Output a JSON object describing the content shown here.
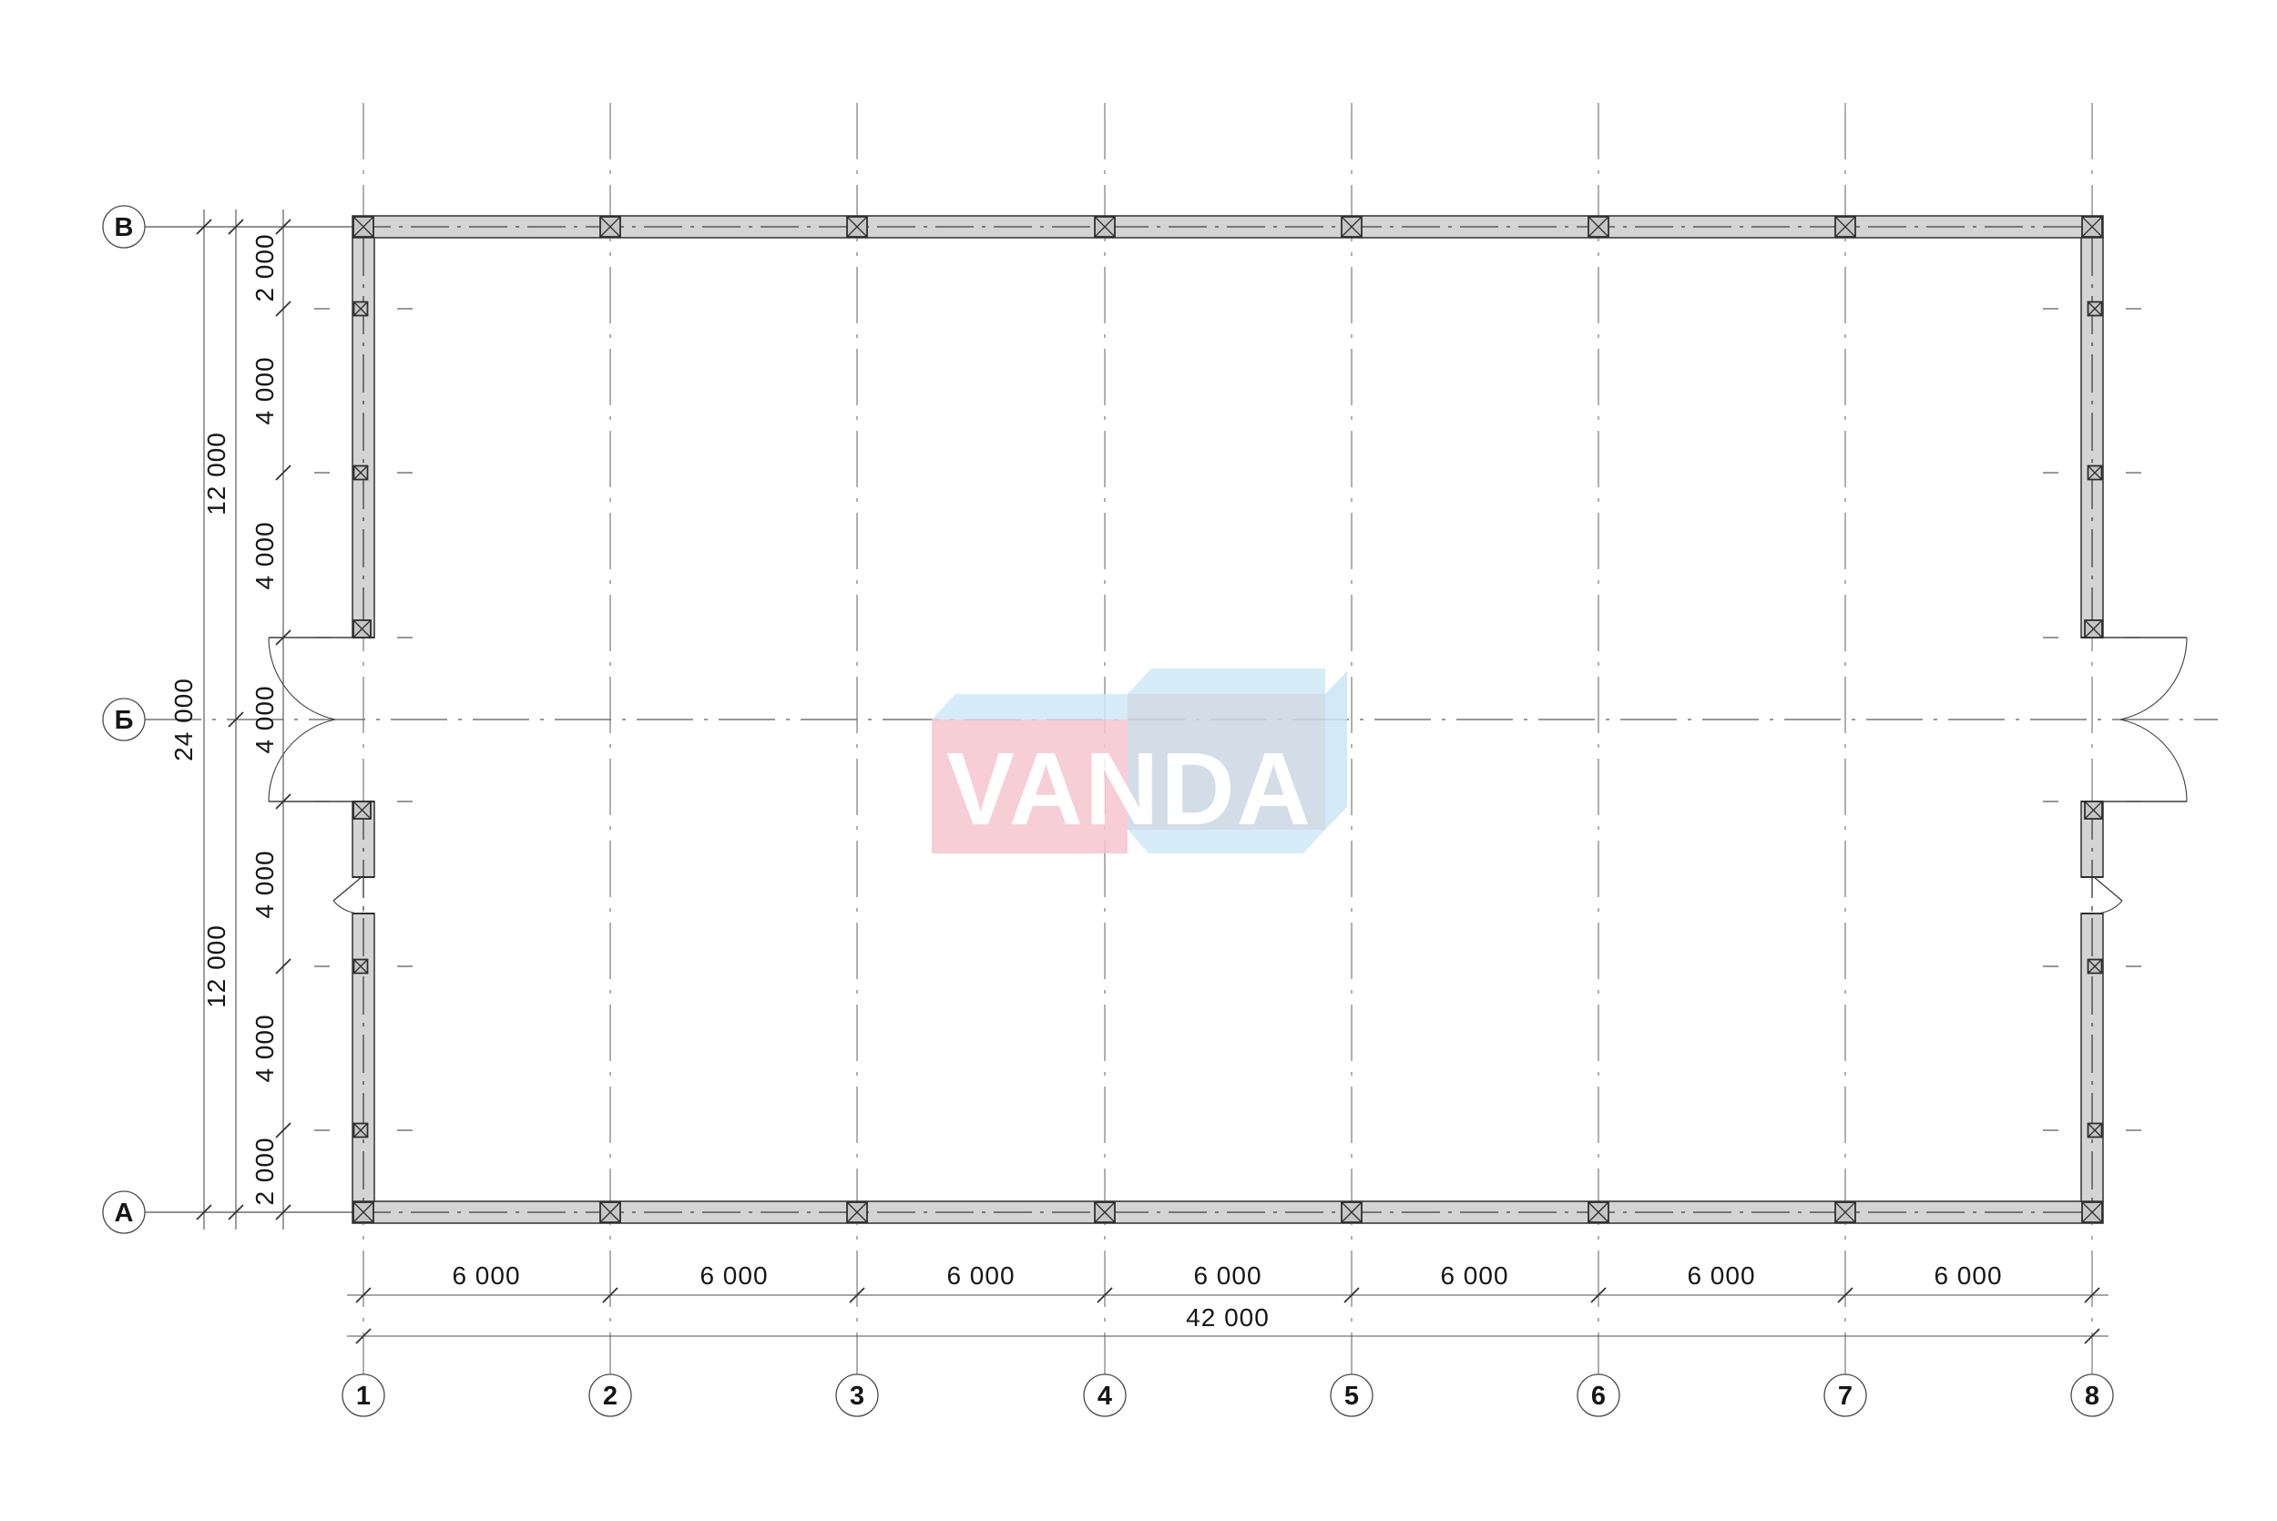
{
  "plan": {
    "row_bubbles": [
      "В",
      "Б",
      "А"
    ],
    "col_bubbles": [
      "1",
      "2",
      "3",
      "4",
      "5",
      "6",
      "7",
      "8"
    ],
    "dims": {
      "left_inner": [
        "2 000",
        "4 000",
        "4 000",
        "4 000",
        "4 000",
        "4 000",
        "2 000"
      ],
      "left_middle": [
        "12 000",
        "12 000"
      ],
      "left_total": "24 000",
      "bottom_bays": [
        "6 000",
        "6 000",
        "6 000",
        "6 000",
        "6 000",
        "6 000",
        "6 000"
      ],
      "bottom_total": "42 000"
    }
  },
  "watermark": {
    "text": "VANDA"
  },
  "colors": {
    "wall_fill": "#d4d4d4",
    "wall_stroke": "#3c3c3c",
    "column_fill": "#c6c6c6",
    "axis_line": "#7a7a7a",
    "center_line": "#3f3f3f",
    "dim_line": "#4f4f4f",
    "logo_pink": "#f6c5cf",
    "logo_blue_top": "#cfe9f8",
    "logo_blue_front": "#ccd8e5",
    "logo_blue_side": "#cbe6f6",
    "logo_text": "#ffffff"
  }
}
